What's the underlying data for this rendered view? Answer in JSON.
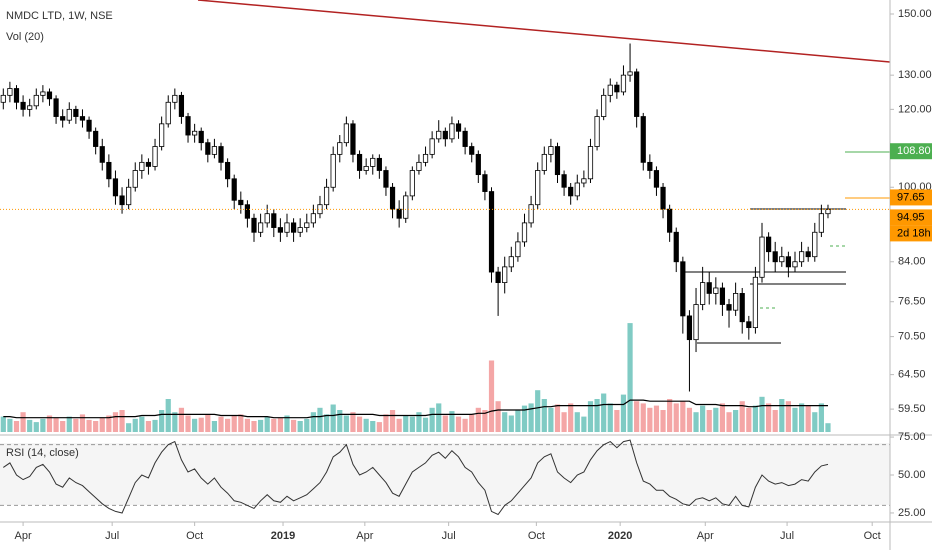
{
  "chart_data": [
    {
      "type": "candlestick",
      "title": "NMDC LTD, 1W, NSE",
      "log_scale": true,
      "ylim": [
        56,
        155
      ],
      "xlim": [
        -0.5,
        134.4
      ],
      "yticks": [
        {
          "value": 150,
          "label": "150.00"
        },
        {
          "value": 130,
          "label": "130.00"
        },
        {
          "value": 120,
          "label": "120.00"
        },
        {
          "value": 100,
          "label": "100.00"
        },
        {
          "value": 84,
          "label": "84.00"
        },
        {
          "value": 76.5,
          "label": "76.50"
        },
        {
          "value": 70.5,
          "label": "70.50"
        },
        {
          "value": 64.5,
          "label": "64.50"
        },
        {
          "value": 59.5,
          "label": "59.50"
        }
      ],
      "xticks": [
        {
          "value": 3,
          "label": "Apr"
        },
        {
          "value": 16.5,
          "label": "Jul"
        },
        {
          "value": 29,
          "label": "Oct"
        },
        {
          "value": 42.4,
          "label": "2019"
        },
        {
          "value": 54.8,
          "label": "Apr"
        },
        {
          "value": 67.5,
          "label": "Jul"
        },
        {
          "value": 80.8,
          "label": "Oct"
        },
        {
          "value": 93.5,
          "label": "2020"
        },
        {
          "value": 106.4,
          "label": "Apr"
        },
        {
          "value": 118.8,
          "label": "Jul"
        },
        {
          "value": 131.7,
          "label": "Oct"
        }
      ],
      "up_color": "#ffffff",
      "down_color": "#000000",
      "price_labels": [
        {
          "value": 108.8,
          "label": "108.80",
          "color": "#4caf50"
        },
        {
          "value": 97.65,
          "label": "97.65",
          "color": "#ff9800"
        },
        {
          "value": 94.95,
          "label": "94.95",
          "color": "#ff9800"
        }
      ],
      "countdown": "2d 18h",
      "candles": [
        [
          122,
          126,
          120,
          124
        ],
        [
          124,
          128,
          122,
          126
        ],
        [
          126,
          127,
          120,
          122
        ],
        [
          122,
          124,
          118,
          120
        ],
        [
          120,
          123,
          118,
          121
        ],
        [
          121,
          126,
          120,
          124
        ],
        [
          124,
          127,
          122,
          125
        ],
        [
          125,
          126,
          121,
          123
        ],
        [
          123,
          124,
          116,
          118
        ],
        [
          118,
          120,
          115,
          117
        ],
        [
          117,
          122,
          116,
          120
        ],
        [
          120,
          121,
          116,
          118
        ],
        [
          118,
          120,
          115,
          117
        ],
        [
          117,
          118,
          112,
          114
        ],
        [
          114,
          115,
          108,
          110
        ],
        [
          110,
          112,
          104,
          106
        ],
        [
          106,
          108,
          100,
          102
        ],
        [
          102,
          104,
          96,
          98
        ],
        [
          98,
          100,
          94,
          96
        ],
        [
          96,
          102,
          95,
          100
        ],
        [
          100,
          106,
          99,
          104
        ],
        [
          104,
          108,
          102,
          106
        ],
        [
          106,
          107,
          103,
          105
        ],
        [
          105,
          112,
          104,
          110
        ],
        [
          110,
          118,
          109,
          116
        ],
        [
          116,
          124,
          115,
          122
        ],
        [
          122,
          126,
          120,
          124
        ],
        [
          124,
          125,
          116,
          118
        ],
        [
          118,
          119,
          111,
          113
        ],
        [
          113,
          116,
          111,
          114
        ],
        [
          114,
          115,
          109,
          111
        ],
        [
          111,
          112,
          106,
          108
        ],
        [
          108,
          112,
          107,
          110
        ],
        [
          110,
          111,
          104,
          106
        ],
        [
          106,
          107,
          100,
          102
        ],
        [
          102,
          103,
          95,
          97
        ],
        [
          97,
          99,
          94,
          96
        ],
        [
          96,
          97,
          91,
          93
        ],
        [
          93,
          94,
          88,
          90
        ],
        [
          90,
          94,
          89,
          92
        ],
        [
          92,
          96,
          91,
          94
        ],
        [
          94,
          95,
          89,
          91
        ],
        [
          91,
          93,
          88,
          90
        ],
        [
          90,
          94,
          89,
          92
        ],
        [
          92,
          93,
          88,
          90
        ],
        [
          90,
          93,
          89,
          91
        ],
        [
          91,
          94,
          90,
          92
        ],
        [
          92,
          96,
          91,
          94
        ],
        [
          94,
          98,
          93,
          96
        ],
        [
          96,
          102,
          95,
          100
        ],
        [
          100,
          110,
          99,
          108
        ],
        [
          108,
          113,
          106,
          111
        ],
        [
          111,
          118,
          110,
          116
        ],
        [
          116,
          117,
          106,
          108
        ],
        [
          108,
          109,
          102,
          104
        ],
        [
          104,
          107,
          103,
          105
        ],
        [
          105,
          108,
          103,
          107
        ],
        [
          107,
          108,
          102,
          104
        ],
        [
          104,
          105,
          98,
          100
        ],
        [
          100,
          101,
          93,
          95
        ],
        [
          95,
          97,
          91,
          93
        ],
        [
          93,
          99,
          92,
          98
        ],
        [
          98,
          105,
          97,
          104
        ],
        [
          104,
          108,
          103,
          106
        ],
        [
          106,
          110,
          105,
          108
        ],
        [
          108,
          114,
          107,
          112
        ],
        [
          112,
          117,
          111,
          114
        ],
        [
          114,
          115,
          110,
          112
        ],
        [
          112,
          118,
          111,
          116
        ],
        [
          116,
          117,
          112,
          114
        ],
        [
          114,
          115,
          108,
          110
        ],
        [
          110,
          111,
          106,
          108
        ],
        [
          108,
          109,
          101,
          103
        ],
        [
          103,
          104,
          97,
          99
        ],
        [
          99,
          100,
          80,
          82
        ],
        [
          82,
          83,
          74,
          80
        ],
        [
          80,
          85,
          78,
          83
        ],
        [
          83,
          87,
          82,
          85
        ],
        [
          85,
          90,
          84,
          88
        ],
        [
          88,
          94,
          87,
          92
        ],
        [
          92,
          98,
          91,
          96
        ],
        [
          96,
          106,
          95,
          104
        ],
        [
          104,
          110,
          103,
          108
        ],
        [
          108,
          112,
          106,
          110
        ],
        [
          110,
          111,
          101,
          103
        ],
        [
          103,
          104,
          98,
          100
        ],
        [
          100,
          101,
          96,
          98
        ],
        [
          98,
          103,
          97,
          101
        ],
        [
          101,
          104,
          100,
          102
        ],
        [
          102,
          112,
          101,
          110
        ],
        [
          110,
          120,
          109,
          118
        ],
        [
          118,
          126,
          117,
          124
        ],
        [
          124,
          129,
          122,
          127
        ],
        [
          127,
          128,
          123,
          125
        ],
        [
          125,
          133,
          124,
          130
        ],
        [
          130,
          140,
          128,
          131
        ],
        [
          131,
          132,
          115,
          118
        ],
        [
          118,
          119,
          104,
          106
        ],
        [
          106,
          108,
          102,
          104
        ],
        [
          104,
          105,
          98,
          100
        ],
        [
          100,
          101,
          93,
          95
        ],
        [
          95,
          96,
          88,
          90
        ],
        [
          90,
          91,
          82,
          84
        ],
        [
          84,
          85,
          71,
          74
        ],
        [
          74,
          75,
          62,
          70
        ],
        [
          70,
          79,
          68,
          76
        ],
        [
          76,
          83,
          75,
          80
        ],
        [
          80,
          82,
          76,
          78
        ],
        [
          78,
          81,
          76,
          79
        ],
        [
          79,
          80,
          74,
          76
        ],
        [
          76,
          77,
          72,
          75
        ],
        [
          75,
          80,
          74,
          78
        ],
        [
          78,
          79,
          71,
          73
        ],
        [
          73,
          74,
          70,
          72
        ],
        [
          72,
          83,
          71,
          81
        ],
        [
          81,
          92,
          80,
          89
        ],
        [
          89,
          90,
          84,
          86
        ],
        [
          86,
          88,
          82,
          84
        ],
        [
          84,
          87,
          83,
          85
        ],
        [
          85,
          86,
          81,
          83
        ],
        [
          83,
          86,
          82,
          84
        ],
        [
          84,
          88,
          83,
          86
        ],
        [
          86,
          87,
          84,
          85
        ],
        [
          85,
          92,
          84,
          90
        ],
        [
          90,
          96,
          89,
          94
        ],
        [
          94,
          96,
          93,
          94.95
        ]
      ]
    },
    {
      "type": "bar",
      "title": "Vol (20)",
      "ylim": [
        0,
        100
      ],
      "up_color": "#80cbc4",
      "down_color": "#f4a6a6",
      "ma_color": "#000000",
      "values": [
        14,
        12,
        10,
        18,
        11,
        9,
        12,
        15,
        13,
        10,
        14,
        12,
        16,
        11,
        10,
        13,
        15,
        18,
        20,
        8,
        12,
        14,
        10,
        11,
        20,
        30,
        18,
        22,
        15,
        12,
        13,
        16,
        10,
        14,
        12,
        15,
        16,
        12,
        10,
        11,
        14,
        12,
        13,
        15,
        11,
        10,
        12,
        18,
        22,
        16,
        25,
        20,
        15,
        18,
        14,
        12,
        10,
        9,
        16,
        20,
        12,
        15,
        14,
        18,
        13,
        22,
        26,
        15,
        19,
        14,
        12,
        16,
        22,
        20,
        65,
        28,
        18,
        15,
        20,
        24,
        26,
        38,
        30,
        22,
        25,
        18,
        26,
        18,
        14,
        28,
        30,
        35,
        26,
        20,
        34,
        99,
        28,
        26,
        22,
        24,
        20,
        30,
        26,
        28,
        22,
        18,
        24,
        20,
        22,
        26,
        18,
        20,
        28,
        22,
        24,
        32,
        26,
        20,
        30,
        28,
        22,
        26,
        24,
        18,
        26,
        8
      ],
      "ma": [
        14,
        14,
        13,
        13,
        13,
        13,
        13,
        13,
        13,
        13,
        13,
        13,
        13,
        13,
        13,
        13,
        13,
        14,
        14,
        14,
        14,
        15,
        15,
        15,
        16,
        16,
        16,
        16,
        16,
        16,
        16,
        16,
        16,
        15,
        15,
        15,
        15,
        14,
        14,
        14,
        14,
        13,
        13,
        13,
        13,
        13,
        13,
        14,
        14,
        15,
        15,
        16,
        16,
        16,
        16,
        16,
        16,
        15,
        15,
        15,
        15,
        15,
        15,
        15,
        15,
        16,
        16,
        16,
        16,
        16,
        16,
        16,
        17,
        17,
        19,
        20,
        20,
        20,
        20,
        20,
        21,
        22,
        23,
        23,
        24,
        24,
        24,
        24,
        24,
        24,
        24,
        25,
        25,
        25,
        25,
        29,
        29,
        29,
        28,
        28,
        28,
        28,
        28,
        28,
        28,
        25,
        25,
        25,
        25,
        24,
        24,
        24,
        24,
        23,
        23,
        24,
        24,
        24,
        24,
        24,
        24,
        24,
        24,
        24,
        24,
        24
      ]
    },
    {
      "type": "line",
      "title": "RSI (14, close)",
      "ylim": [
        19.7,
        75.7
      ],
      "color": "#333333",
      "bands": [
        70,
        30
      ],
      "yticks": [
        {
          "value": 75,
          "label": "75.00"
        },
        {
          "value": 50,
          "label": "50.00"
        },
        {
          "value": 25,
          "label": "25.00"
        }
      ],
      "values": [
        55,
        58,
        50,
        47,
        49,
        55,
        57,
        52,
        44,
        42,
        48,
        45,
        43,
        39,
        35,
        31,
        28,
        26,
        25,
        35,
        45,
        50,
        48,
        58,
        65,
        70,
        72,
        60,
        52,
        54,
        48,
        44,
        48,
        42,
        38,
        33,
        32,
        30,
        28,
        33,
        37,
        33,
        32,
        36,
        33,
        35,
        37,
        41,
        45,
        52,
        62,
        65,
        70,
        57,
        50,
        52,
        55,
        50,
        45,
        38,
        36,
        44,
        52,
        55,
        58,
        63,
        65,
        61,
        66,
        62,
        55,
        52,
        45,
        40,
        26,
        24,
        30,
        33,
        38,
        43,
        48,
        58,
        62,
        64,
        52,
        48,
        45,
        50,
        52,
        60,
        66,
        70,
        72,
        68,
        72,
        73,
        58,
        46,
        44,
        40,
        40,
        36,
        34,
        31,
        30,
        34,
        35,
        33,
        35,
        31,
        30,
        36,
        30,
        29,
        42,
        50,
        46,
        44,
        45,
        43,
        44,
        47,
        46,
        52,
        56,
        57
      ]
    }
  ]
}
